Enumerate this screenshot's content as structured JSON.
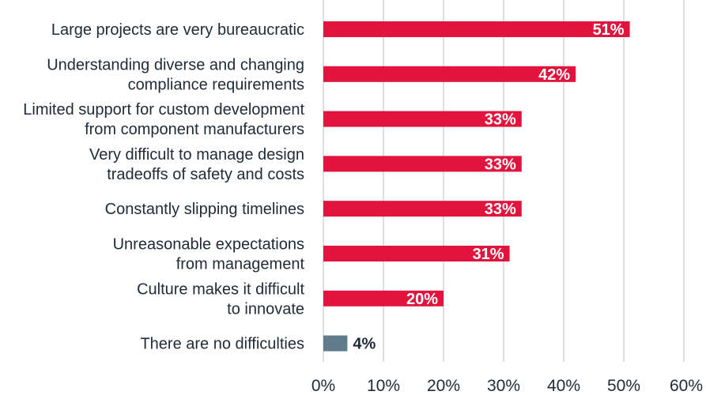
{
  "chart_data": {
    "type": "bar",
    "orientation": "horizontal",
    "title": "",
    "xlabel": "",
    "ylabel": "",
    "xlim": [
      0,
      60
    ],
    "x_ticks": [
      0,
      10,
      20,
      30,
      40,
      50,
      60
    ],
    "x_tick_labels": [
      "0%",
      "10%",
      "20%",
      "30%",
      "40%",
      "50%",
      "60%"
    ],
    "grid": true,
    "categories": [
      [
        "Large projects are very bureaucratic"
      ],
      [
        "Understanding diverse and changing",
        "compliance requirements"
      ],
      [
        "Limited support for custom development",
        "from component manufacturers"
      ],
      [
        "Very difficult to manage design",
        "tradeoffs of safety and costs"
      ],
      [
        "Constantly slipping timelines"
      ],
      [
        "Unreasonable expectations",
        "from management"
      ],
      [
        "Culture makes it difficult",
        "to innovate"
      ],
      [
        "There are no difficulties"
      ]
    ],
    "values": [
      51,
      42,
      33,
      33,
      33,
      31,
      20,
      4
    ],
    "value_labels": [
      "51%",
      "42%",
      "33%",
      "33%",
      "33%",
      "31%",
      "20%",
      "4%"
    ],
    "bar_colors": [
      "#e0143c",
      "#e0143c",
      "#e0143c",
      "#e0143c",
      "#e0143c",
      "#e0143c",
      "#e0143c",
      "#5f7b8c"
    ]
  }
}
